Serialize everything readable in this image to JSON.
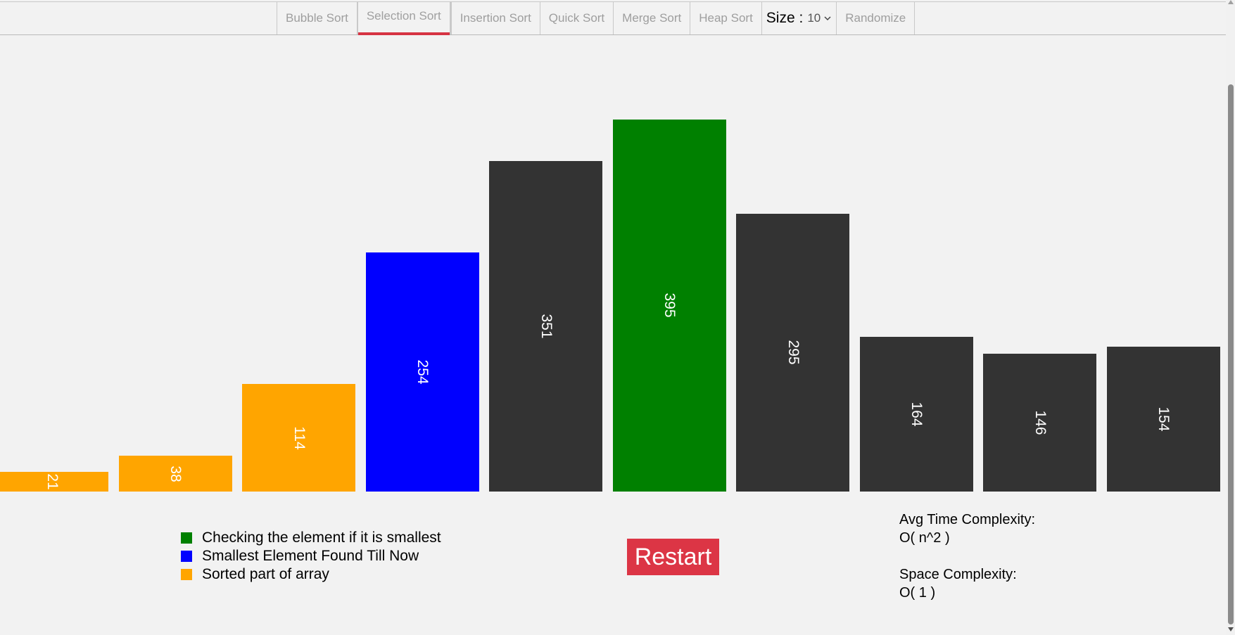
{
  "nav": {
    "items": [
      {
        "label": "Bubble Sort",
        "active": false
      },
      {
        "label": "Selection Sort",
        "active": true
      },
      {
        "label": "Insertion Sort",
        "active": false
      },
      {
        "label": "Quick Sort",
        "active": false
      },
      {
        "label": "Merge Sort",
        "active": false
      },
      {
        "label": "Heap Sort",
        "active": false
      }
    ],
    "size_label": "Size :",
    "size_value": "10",
    "randomize_label": "Randomize",
    "active_underline_color": "#d63343"
  },
  "chart_data": {
    "type": "bar",
    "values": [
      21,
      38,
      114,
      254,
      351,
      395,
      295,
      164,
      146,
      154
    ],
    "states": [
      "sorted",
      "sorted",
      "sorted",
      "smallest",
      "default",
      "checking",
      "default",
      "default",
      "default",
      "default"
    ],
    "colors": {
      "sorted": "#ffa500",
      "smallest": "#0000ff",
      "checking": "#008000",
      "default": "#333333"
    }
  },
  "legend": {
    "items": [
      {
        "color": "#008000",
        "label": "Checking the element if it is smallest"
      },
      {
        "color": "#0000ff",
        "label": "Smallest Element Found Till Now"
      },
      {
        "color": "#ffa500",
        "label": "Sorted part of array"
      }
    ]
  },
  "restart_label": "Restart",
  "complexity": {
    "time_label": "Avg Time Complexity:",
    "time_value": "O( n^2 )",
    "space_label": "Space Complexity:",
    "space_value": "O( 1 )"
  }
}
